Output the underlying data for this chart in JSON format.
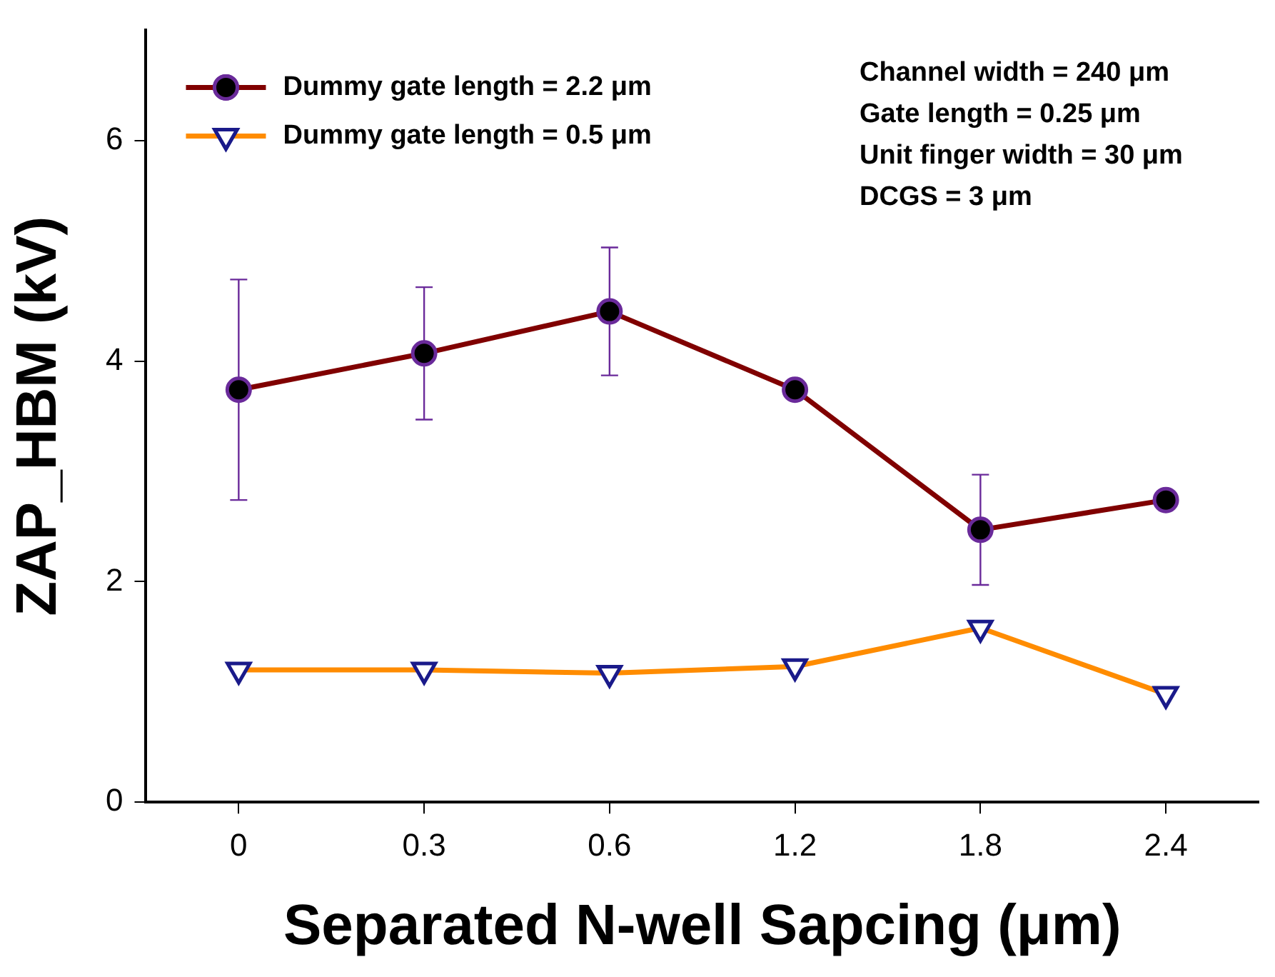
{
  "chart_data": {
    "type": "line",
    "xlabel": "Separated N-well Sapcing (μm)",
    "ylabel": "ZAP_HBM (kV)",
    "categories": [
      "0",
      "0.3",
      "0.6",
      "1.2",
      "1.8",
      "2.4"
    ],
    "ylim": [
      0,
      7
    ],
    "yticks": [
      0,
      2,
      4,
      6
    ],
    "legend": "top left",
    "series": [
      {
        "name": "Dummy gate length = 2.2 μm",
        "color": "#800000",
        "marker": "circle",
        "values": [
          3.74,
          4.07,
          4.45,
          3.74,
          2.47,
          2.74
        ],
        "errors": [
          1.0,
          0.6,
          0.58,
          null,
          0.5,
          null
        ]
      },
      {
        "name": "Dummy gate length = 0.5 μm",
        "color": "#ff8c00",
        "marker": "triangle",
        "values": [
          1.2,
          1.2,
          1.17,
          1.23,
          1.58,
          0.98
        ]
      }
    ],
    "annotations": [
      "Channel width = 240 μm",
      "Gate length = 0.25 μm",
      "Unit finger width = 30 μm",
      "DCGS = 3 μm"
    ]
  }
}
